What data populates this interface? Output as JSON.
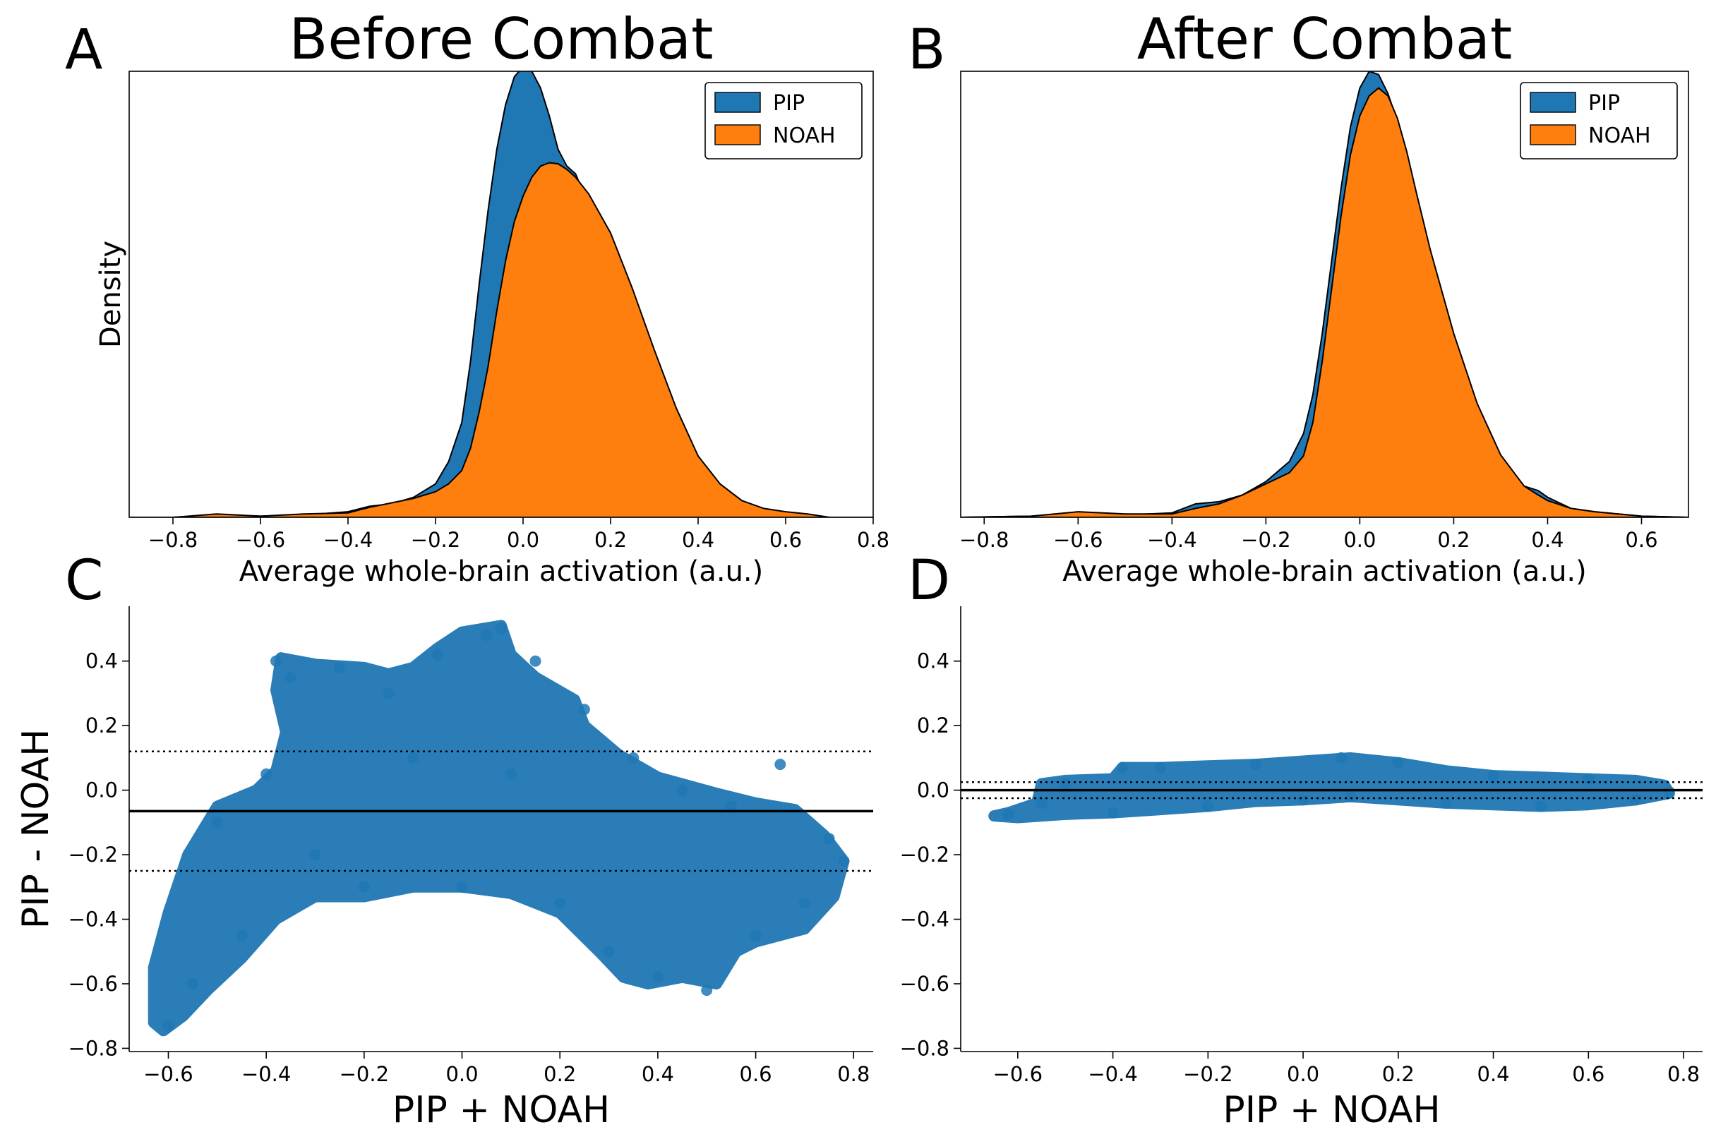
{
  "figure": {
    "panel_labels": [
      "A",
      "B",
      "C",
      "D"
    ]
  },
  "colors": {
    "pip": "#1f77b4",
    "noah": "#ff7f0e",
    "scatter": "#1f77b4",
    "line": "#000000"
  },
  "chart_data": [
    {
      "type": "area",
      "panel": "A",
      "title": "Before Combat",
      "xlabel": "Average whole-brain activation (a.u.)",
      "ylabel": "Density",
      "xlim": [
        -0.9,
        0.8
      ],
      "ylim": [
        0,
        4.0
      ],
      "xticks": [
        -0.8,
        -0.6,
        -0.4,
        -0.2,
        0.0,
        0.2,
        0.4,
        0.6,
        0.8
      ],
      "xtick_labels": [
        "−0.8",
        "−0.6",
        "−0.4",
        "−0.2",
        "0.0",
        "0.2",
        "0.4",
        "0.6",
        "0.8"
      ],
      "y_tick_labels_visible": false,
      "legend": {
        "position": "top-right",
        "entries": [
          "PIP",
          "NOAH"
        ]
      },
      "series": [
        {
          "name": "PIP",
          "x": [
            -0.9,
            -0.8,
            -0.7,
            -0.6,
            -0.5,
            -0.4,
            -0.35,
            -0.3,
            -0.25,
            -0.2,
            -0.17,
            -0.14,
            -0.12,
            -0.1,
            -0.08,
            -0.06,
            -0.04,
            -0.02,
            0.0,
            0.02,
            0.04,
            0.06,
            0.08,
            0.1,
            0.12,
            0.15,
            0.2,
            0.25,
            0.3,
            0.35,
            0.4,
            0.45,
            0.5,
            0.55,
            0.6,
            0.65,
            0.7,
            0.8
          ],
          "values": [
            0.0,
            0.0,
            0.02,
            0.01,
            0.02,
            0.05,
            0.1,
            0.12,
            0.18,
            0.3,
            0.5,
            0.85,
            1.4,
            2.1,
            2.75,
            3.3,
            3.7,
            3.95,
            4.04,
            4.0,
            3.85,
            3.6,
            3.3,
            3.15,
            3.08,
            2.8,
            2.2,
            1.55,
            0.98,
            0.58,
            0.3,
            0.15,
            0.08,
            0.05,
            0.04,
            0.02,
            0.0,
            0.0
          ]
        },
        {
          "name": "NOAH",
          "x": [
            -0.9,
            -0.8,
            -0.7,
            -0.6,
            -0.5,
            -0.4,
            -0.35,
            -0.3,
            -0.25,
            -0.2,
            -0.17,
            -0.14,
            -0.12,
            -0.1,
            -0.08,
            -0.06,
            -0.04,
            -0.02,
            0.0,
            0.02,
            0.04,
            0.06,
            0.08,
            0.1,
            0.12,
            0.15,
            0.2,
            0.25,
            0.3,
            0.35,
            0.4,
            0.45,
            0.5,
            0.55,
            0.6,
            0.65,
            0.7,
            0.8
          ],
          "values": [
            0.0,
            0.0,
            0.03,
            0.01,
            0.03,
            0.04,
            0.09,
            0.13,
            0.17,
            0.23,
            0.3,
            0.42,
            0.62,
            0.95,
            1.35,
            1.85,
            2.3,
            2.65,
            2.88,
            3.05,
            3.15,
            3.18,
            3.17,
            3.12,
            3.05,
            2.9,
            2.55,
            2.05,
            1.5,
            0.98,
            0.55,
            0.3,
            0.15,
            0.08,
            0.05,
            0.03,
            0.0,
            0.0
          ]
        }
      ]
    },
    {
      "type": "area",
      "panel": "B",
      "title": "After Combat",
      "xlabel": "Average whole-brain activation (a.u.)",
      "ylabel": "",
      "xlim": [
        -0.85,
        0.7
      ],
      "ylim": [
        0,
        4.0
      ],
      "xticks": [
        -0.8,
        -0.6,
        -0.4,
        -0.2,
        0.0,
        0.2,
        0.4,
        0.6
      ],
      "xtick_labels": [
        "−0.8",
        "−0.6",
        "−0.4",
        "−0.2",
        "0.0",
        "0.2",
        "0.4",
        "0.6"
      ],
      "y_tick_labels_visible": false,
      "legend": {
        "position": "top-right",
        "entries": [
          "PIP",
          "NOAH"
        ]
      },
      "series": [
        {
          "name": "PIP",
          "x": [
            -0.85,
            -0.7,
            -0.6,
            -0.5,
            -0.4,
            -0.35,
            -0.3,
            -0.25,
            -0.2,
            -0.15,
            -0.12,
            -0.1,
            -0.08,
            -0.06,
            -0.04,
            -0.02,
            0.0,
            0.02,
            0.04,
            0.06,
            0.08,
            0.1,
            0.12,
            0.15,
            0.2,
            0.25,
            0.3,
            0.35,
            0.38,
            0.4,
            0.45,
            0.5,
            0.55,
            0.6,
            0.7
          ],
          "values": [
            0.0,
            0.01,
            0.04,
            0.02,
            0.04,
            0.12,
            0.14,
            0.2,
            0.32,
            0.5,
            0.75,
            1.1,
            1.65,
            2.3,
            2.95,
            3.5,
            3.85,
            4.0,
            3.97,
            3.8,
            3.55,
            3.2,
            2.85,
            2.3,
            1.6,
            1.0,
            0.55,
            0.28,
            0.24,
            0.18,
            0.08,
            0.05,
            0.03,
            0.01,
            0.0
          ]
        },
        {
          "name": "NOAH",
          "x": [
            -0.85,
            -0.7,
            -0.6,
            -0.5,
            -0.4,
            -0.35,
            -0.3,
            -0.25,
            -0.2,
            -0.15,
            -0.12,
            -0.1,
            -0.08,
            -0.06,
            -0.04,
            -0.02,
            0.0,
            0.02,
            0.04,
            0.06,
            0.08,
            0.1,
            0.12,
            0.15,
            0.2,
            0.25,
            0.3,
            0.35,
            0.38,
            0.4,
            0.45,
            0.5,
            0.55,
            0.6,
            0.7
          ],
          "values": [
            0.0,
            0.01,
            0.05,
            0.03,
            0.03,
            0.08,
            0.12,
            0.2,
            0.3,
            0.4,
            0.55,
            0.85,
            1.4,
            2.05,
            2.7,
            3.25,
            3.6,
            3.78,
            3.85,
            3.78,
            3.58,
            3.28,
            2.92,
            2.4,
            1.65,
            1.02,
            0.56,
            0.28,
            0.2,
            0.15,
            0.08,
            0.05,
            0.03,
            0.01,
            0.0
          ]
        }
      ]
    },
    {
      "type": "scatter",
      "panel": "C",
      "title": "",
      "xlabel": "PIP + NOAH",
      "ylabel": "PIP - NOAH",
      "xlim": [
        -0.68,
        0.84
      ],
      "ylim": [
        -0.81,
        0.57
      ],
      "xticks": [
        -0.6,
        -0.4,
        -0.2,
        0.0,
        0.2,
        0.4,
        0.6,
        0.8
      ],
      "xtick_labels": [
        "−0.6",
        "−0.4",
        "−0.2",
        "0.0",
        "0.2",
        "0.4",
        "0.6",
        "0.8"
      ],
      "yticks": [
        -0.8,
        -0.6,
        -0.4,
        -0.2,
        0.0,
        0.2,
        0.4
      ],
      "ytick_labels": [
        "−0.8",
        "−0.6",
        "−0.4",
        "−0.2",
        "0.0",
        "0.2",
        "0.4"
      ],
      "reference_lines": {
        "mean": -0.065,
        "upper_limit": 0.12,
        "lower_limit": -0.25
      },
      "point_cloud_outline": [
        [
          -0.61,
          -0.745
        ],
        [
          -0.57,
          -0.7
        ],
        [
          -0.52,
          -0.62
        ],
        [
          -0.45,
          -0.52
        ],
        [
          -0.38,
          -0.4
        ],
        [
          -0.3,
          -0.33
        ],
        [
          -0.2,
          -0.33
        ],
        [
          -0.1,
          -0.3
        ],
        [
          0.0,
          -0.3
        ],
        [
          0.1,
          -0.32
        ],
        [
          0.2,
          -0.38
        ],
        [
          0.28,
          -0.5
        ],
        [
          0.33,
          -0.58
        ],
        [
          0.38,
          -0.6
        ],
        [
          0.45,
          -0.58
        ],
        [
          0.52,
          -0.6
        ],
        [
          0.56,
          -0.5
        ],
        [
          0.6,
          -0.47
        ],
        [
          0.7,
          -0.43
        ],
        [
          0.76,
          -0.33
        ],
        [
          0.78,
          -0.22
        ],
        [
          0.74,
          -0.14
        ],
        [
          0.68,
          -0.06
        ],
        [
          0.6,
          -0.04
        ],
        [
          0.52,
          -0.01
        ],
        [
          0.4,
          0.04
        ],
        [
          0.32,
          0.11
        ],
        [
          0.25,
          0.2
        ],
        [
          0.23,
          0.28
        ],
        [
          0.15,
          0.35
        ],
        [
          0.1,
          0.42
        ],
        [
          0.08,
          0.51
        ],
        [
          0.0,
          0.49
        ],
        [
          -0.05,
          0.44
        ],
        [
          -0.1,
          0.38
        ],
        [
          -0.15,
          0.36
        ],
        [
          -0.2,
          0.38
        ],
        [
          -0.3,
          0.39
        ],
        [
          -0.37,
          0.41
        ],
        [
          -0.38,
          0.31
        ],
        [
          -0.36,
          0.18
        ],
        [
          -0.38,
          0.06
        ],
        [
          -0.42,
          0.0
        ],
        [
          -0.5,
          -0.05
        ],
        [
          -0.56,
          -0.2
        ],
        [
          -0.6,
          -0.38
        ],
        [
          -0.63,
          -0.55
        ],
        [
          -0.63,
          -0.72
        ]
      ],
      "x": [
        -0.6,
        -0.55,
        -0.5,
        -0.45,
        -0.4,
        -0.38,
        -0.35,
        -0.3,
        -0.25,
        -0.2,
        -0.15,
        -0.1,
        -0.05,
        0.0,
        0.05,
        0.08,
        0.1,
        0.15,
        0.2,
        0.25,
        0.3,
        0.35,
        0.4,
        0.45,
        0.5,
        0.55,
        0.6,
        0.65,
        0.7,
        0.75,
        0.78
      ],
      "y": [
        -0.73,
        -0.6,
        -0.1,
        -0.45,
        0.05,
        0.4,
        0.35,
        -0.2,
        0.38,
        -0.3,
        0.3,
        0.1,
        0.42,
        -0.3,
        0.48,
        0.5,
        0.05,
        0.4,
        -0.35,
        0.25,
        -0.5,
        0.1,
        -0.58,
        0.0,
        -0.62,
        -0.05,
        -0.45,
        0.08,
        -0.35,
        -0.15,
        -0.22
      ]
    },
    {
      "type": "scatter",
      "panel": "D",
      "title": "",
      "xlabel": "PIP + NOAH",
      "ylabel": "",
      "xlim": [
        -0.72,
        0.84
      ],
      "ylim": [
        -0.81,
        0.57
      ],
      "xticks": [
        -0.6,
        -0.4,
        -0.2,
        0.0,
        0.2,
        0.4,
        0.6,
        0.8
      ],
      "xtick_labels": [
        "−0.6",
        "−0.4",
        "−0.2",
        "0.0",
        "0.2",
        "0.4",
        "0.6",
        "0.8"
      ],
      "yticks": [
        -0.8,
        -0.6,
        -0.4,
        -0.2,
        0.0,
        0.2,
        0.4
      ],
      "ytick_labels": [
        "−0.8",
        "−0.6",
        "−0.4",
        "−0.2",
        "0.0",
        "0.2",
        "0.4"
      ],
      "reference_lines": {
        "mean": 0.0,
        "upper_limit": 0.025,
        "lower_limit": -0.025
      },
      "point_cloud_outline": [
        [
          -0.65,
          -0.08
        ],
        [
          -0.6,
          -0.085
        ],
        [
          -0.5,
          -0.075
        ],
        [
          -0.4,
          -0.07
        ],
        [
          -0.3,
          -0.06
        ],
        [
          -0.2,
          -0.05
        ],
        [
          -0.1,
          -0.035
        ],
        [
          0.0,
          -0.03
        ],
        [
          0.1,
          -0.02
        ],
        [
          0.2,
          -0.03
        ],
        [
          0.3,
          -0.04
        ],
        [
          0.4,
          -0.045
        ],
        [
          0.5,
          -0.05
        ],
        [
          0.6,
          -0.045
        ],
        [
          0.7,
          -0.03
        ],
        [
          0.77,
          -0.01
        ],
        [
          0.76,
          0.015
        ],
        [
          0.7,
          0.03
        ],
        [
          0.6,
          0.035
        ],
        [
          0.5,
          0.04
        ],
        [
          0.4,
          0.045
        ],
        [
          0.3,
          0.06
        ],
        [
          0.2,
          0.085
        ],
        [
          0.1,
          0.1
        ],
        [
          0.0,
          0.09
        ],
        [
          -0.1,
          0.08
        ],
        [
          -0.2,
          0.075
        ],
        [
          -0.3,
          0.07
        ],
        [
          -0.38,
          0.07
        ],
        [
          -0.4,
          0.035
        ],
        [
          -0.5,
          0.03
        ],
        [
          -0.55,
          0.02
        ],
        [
          -0.56,
          -0.04
        ],
        [
          -0.62,
          -0.07
        ]
      ],
      "x": [
        -0.62,
        -0.55,
        -0.5,
        -0.4,
        -0.38,
        -0.3,
        -0.2,
        -0.1,
        0.0,
        0.08,
        0.1,
        0.2,
        0.3,
        0.4,
        0.5,
        0.6,
        0.7,
        0.77
      ],
      "y": [
        -0.075,
        -0.04,
        0.02,
        -0.07,
        0.07,
        0.07,
        -0.05,
        0.08,
        -0.03,
        0.1,
        -0.02,
        0.085,
        -0.04,
        0.045,
        -0.05,
        0.035,
        -0.03,
        -0.005
      ]
    }
  ]
}
